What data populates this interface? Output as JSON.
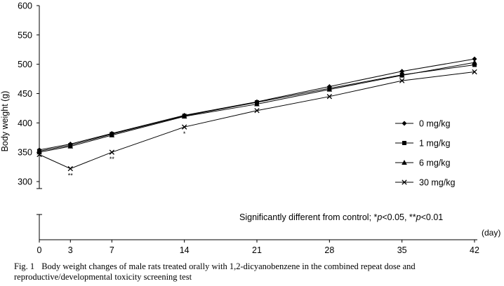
{
  "chart_data": {
    "type": "line",
    "title": "",
    "xlabel": "(day)",
    "ylabel": "Body weight (g)",
    "ylim": [
      300,
      600
    ],
    "yticks": [
      300,
      350,
      400,
      450,
      500,
      550,
      600
    ],
    "x": [
      0,
      3,
      7,
      14,
      21,
      28,
      35,
      42
    ],
    "grid": false,
    "legend_position": "right",
    "series": [
      {
        "name": "0 mg/kg",
        "marker": "diamond",
        "values": [
          354,
          364,
          382,
          413,
          436,
          462,
          488,
          509
        ]
      },
      {
        "name": "1 mg/kg",
        "marker": "square",
        "values": [
          352,
          362,
          381,
          412,
          435,
          459,
          482,
          499
        ]
      },
      {
        "name": "6 mg/kg",
        "marker": "triangle",
        "values": [
          350,
          360,
          379,
          411,
          432,
          457,
          481,
          503
        ]
      },
      {
        "name": "30 mg/kg",
        "marker": "x",
        "values": [
          346,
          322,
          350,
          393,
          421,
          445,
          472,
          487
        ]
      }
    ],
    "significance": [
      {
        "x": 3,
        "label": "**"
      },
      {
        "x": 7,
        "label": "**"
      },
      {
        "x": 14,
        "label": "*"
      }
    ],
    "annotation": {
      "prefix": "Significantly different from control; *",
      "p1": "p",
      "mid": "<0.05, **",
      "p2": "p",
      "suffix": "<0.01"
    }
  },
  "caption": {
    "fig_label": "Fig. 1",
    "text": "Body weight changes of male rats treated orally with 1,2-dicyanobenzene in the combined repeat dose and reproductive/developmental toxicity screening test"
  }
}
